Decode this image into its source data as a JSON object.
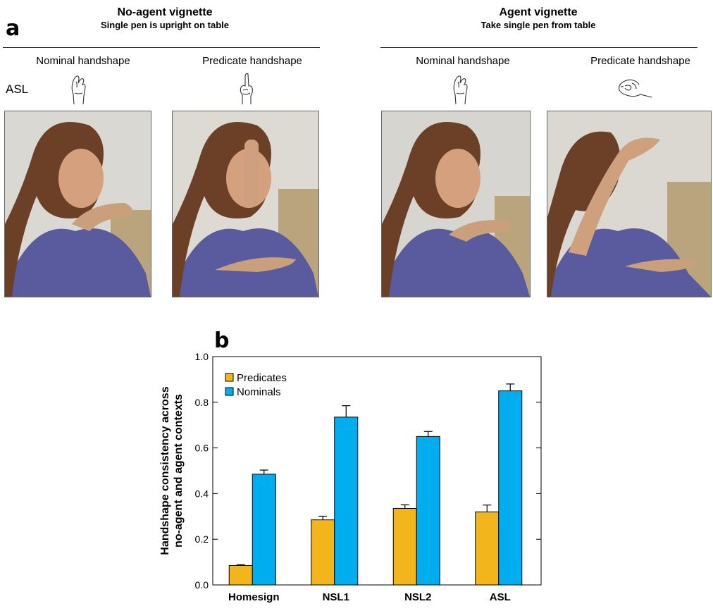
{
  "panel_a": {
    "letter": "a",
    "language": "ASL",
    "no_agent": {
      "title": "No-agent vignette",
      "subtitle": "Single pen is upright on table",
      "nominal_label": "Nominal handshape",
      "predicate_label": "Predicate handshape"
    },
    "agent": {
      "title": "Agent vignette",
      "subtitle": "Take single pen from table",
      "nominal_label": "Nominal handshape",
      "predicate_label": "Predicate handshape"
    },
    "icons": [
      "nominal-handshape-icon",
      "predicate-handshape-icon"
    ]
  },
  "panel_b": {
    "letter": "b"
  },
  "colors": {
    "predicates": "#F2B51C",
    "nominals": "#00AEEF"
  },
  "chart_data": {
    "type": "bar",
    "title": "",
    "xlabel": "",
    "ylabel": "Handshape consistency across no-agent and agent contexts",
    "ylabel_lines": [
      "Handshape consistency across",
      "no-agent and agent contexts"
    ],
    "categories": [
      "Homesign",
      "NSL1",
      "NSL2",
      "ASL"
    ],
    "series": [
      {
        "name": "Predicates",
        "values": [
          0.085,
          0.285,
          0.335,
          0.32
        ],
        "errors": [
          0.004,
          0.016,
          0.016,
          0.03
        ]
      },
      {
        "name": "Nominals",
        "values": [
          0.485,
          0.735,
          0.65,
          0.85
        ],
        "errors": [
          0.018,
          0.05,
          0.022,
          0.03
        ]
      }
    ],
    "ylim": [
      0,
      1
    ],
    "yticks": [
      "0.0",
      "0.2",
      "0.4",
      "0.6",
      "0.8",
      "1.0"
    ],
    "grid": false,
    "legend_position": "top-left"
  }
}
